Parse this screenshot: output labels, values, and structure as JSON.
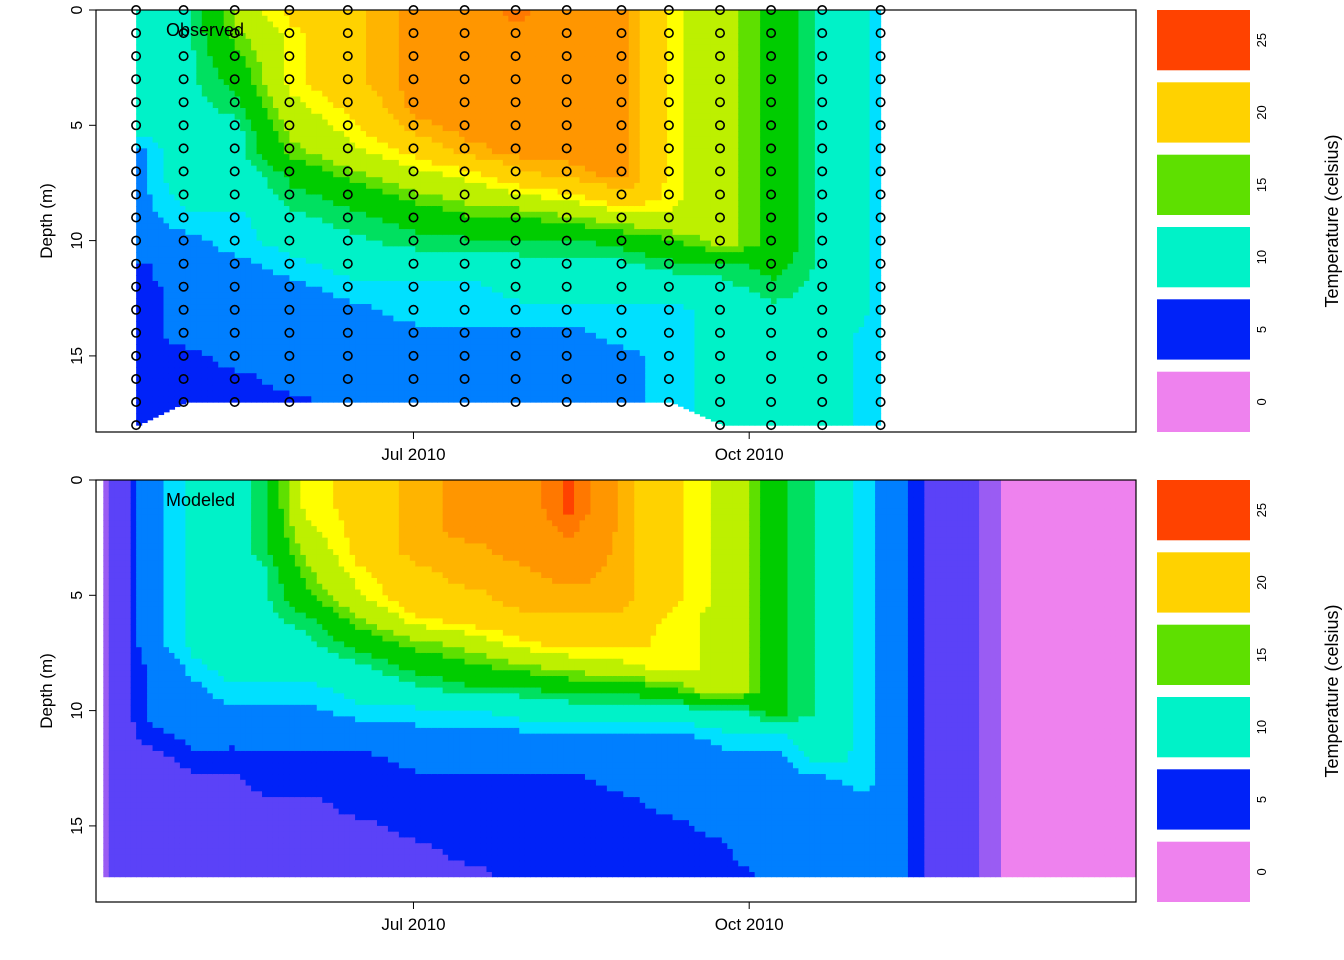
{
  "chart_data": [
    {
      "type": "heatmap",
      "title": "Observed",
      "ylabel": "Depth (m)",
      "xlabel": "",
      "x_range": [
        "2010-04-05",
        "2011-01-15"
      ],
      "ylim": [
        18.3,
        0
      ],
      "x_ticks": [
        {
          "date": "2010-07-01",
          "label": "Jul 2010"
        },
        {
          "date": "2010-10-01",
          "label": "Oct 2010"
        }
      ],
      "y_ticks": [
        0,
        5,
        10,
        15
      ],
      "grid": false,
      "sample_dates": [
        "2010-04-16",
        "2010-04-29",
        "2010-05-13",
        "2010-05-28",
        "2010-06-13",
        "2010-07-01",
        "2010-07-15",
        "2010-07-29",
        "2010-08-12",
        "2010-08-27",
        "2010-09-09",
        "2010-09-23",
        "2010-10-07",
        "2010-10-21",
        "2010-11-06"
      ],
      "sample_depths": [
        0,
        1,
        2,
        3,
        4,
        5,
        6,
        7,
        8,
        9,
        10,
        11,
        12,
        13,
        14,
        15,
        16,
        17,
        18
      ],
      "sample_max_depth": [
        18,
        17,
        17,
        17,
        17,
        17,
        17,
        17,
        17,
        17,
        17,
        18,
        18,
        18,
        18
      ],
      "profiles": [
        [
          10,
          10,
          10,
          10,
          10,
          10,
          8,
          8,
          8,
          8,
          8,
          6,
          6,
          6,
          6,
          6,
          6,
          6,
          6
        ],
        [
          11,
          11,
          11,
          11,
          11,
          11,
          11,
          11,
          10,
          9,
          8,
          8,
          7,
          7,
          7,
          6,
          6,
          6,
          6
        ],
        [
          16,
          15,
          14,
          13,
          12,
          11,
          11,
          10,
          10,
          9,
          9,
          8,
          8,
          7,
          7,
          7,
          6,
          6,
          6
        ],
        [
          19,
          18,
          18,
          18,
          17,
          16,
          15,
          13,
          12,
          11,
          10,
          9,
          8,
          8,
          7,
          7,
          7,
          6,
          6
        ],
        [
          20,
          20,
          20,
          20,
          19,
          18,
          17,
          15,
          13,
          12,
          11,
          10,
          9,
          8,
          8,
          7,
          7,
          7,
          6
        ],
        [
          22,
          22,
          22,
          22,
          22,
          21,
          19,
          17,
          15,
          13,
          12,
          10,
          9,
          9,
          8,
          8,
          7,
          7,
          6
        ],
        [
          22,
          22,
          22,
          22,
          22,
          22,
          21,
          18,
          16,
          14,
          12,
          10,
          9,
          9,
          8,
          8,
          8,
          7,
          7
        ],
        [
          24,
          23,
          22,
          22,
          22,
          22,
          22,
          20,
          17,
          14,
          12,
          11,
          10,
          9,
          8,
          8,
          8,
          7,
          7
        ],
        [
          22,
          22,
          22,
          22,
          22,
          22,
          22,
          21,
          18,
          15,
          12,
          11,
          10,
          9,
          8,
          8,
          8,
          8,
          7
        ],
        [
          22,
          22,
          22,
          22,
          22,
          22,
          22,
          22,
          20,
          16,
          13,
          11,
          10,
          9,
          9,
          8,
          8,
          8,
          8
        ],
        [
          18,
          18,
          18,
          18,
          18,
          18,
          18,
          18,
          18,
          17,
          14,
          12,
          10,
          9,
          9,
          9,
          9,
          9,
          9
        ],
        [
          16,
          16,
          16,
          16,
          16,
          16,
          16,
          16,
          16,
          16,
          16,
          12,
          11,
          10,
          10,
          10,
          10,
          10,
          10
        ],
        [
          14,
          14,
          14,
          14,
          14,
          14,
          14,
          14,
          14,
          14,
          14,
          13,
          12,
          11,
          11,
          10,
          10,
          10,
          10
        ],
        [
          11,
          11,
          11,
          11,
          11,
          11,
          11,
          11,
          11,
          11,
          11,
          11,
          11,
          11,
          10,
          10,
          10,
          10,
          10
        ],
        [
          9,
          9,
          9,
          9,
          9,
          9,
          9,
          9,
          9,
          9,
          9,
          9,
          9,
          9,
          9,
          9,
          9,
          9,
          9
        ]
      ]
    },
    {
      "type": "heatmap",
      "title": "Modeled",
      "ylabel": "Depth (m)",
      "xlabel": "",
      "x_range": [
        "2010-04-05",
        "2011-01-15"
      ],
      "ylim": [
        18.3,
        0
      ],
      "x_ticks": [
        {
          "date": "2010-07-01",
          "label": "Jul 2010"
        },
        {
          "date": "2010-10-01",
          "label": "Oct 2010"
        }
      ],
      "y_ticks": [
        0,
        5,
        10,
        15
      ],
      "grid": false,
      "model_dates": [
        "2010-04-07",
        "2010-04-12",
        "2010-04-20",
        "2010-05-01",
        "2010-05-10",
        "2010-05-20",
        "2010-06-01",
        "2010-06-15",
        "2010-07-01",
        "2010-07-15",
        "2010-07-29",
        "2010-08-12",
        "2010-08-27",
        "2010-09-09",
        "2010-09-23",
        "2010-09-28",
        "2010-10-07",
        "2010-10-21",
        "2010-11-01",
        "2010-11-10",
        "2010-11-20",
        "2010-11-28",
        "2010-12-05",
        "2010-12-15",
        "2011-01-01",
        "2011-01-15"
      ],
      "model_depths": [
        0,
        1,
        2,
        3,
        4,
        5,
        6,
        7,
        8,
        9,
        10,
        11,
        12,
        13,
        14,
        15,
        16,
        17
      ],
      "model_max_depth": 17.2,
      "profiles": [
        [
          3,
          3,
          3,
          3,
          3,
          3,
          3,
          3,
          3,
          3,
          3,
          3,
          3,
          3,
          3,
          3,
          3,
          3
        ],
        [
          5,
          5,
          5,
          5,
          5,
          5,
          5,
          5,
          5,
          5,
          5,
          5,
          5,
          5,
          5,
          5,
          5,
          5
        ],
        [
          8,
          8,
          8,
          8,
          8,
          8,
          8,
          8,
          7,
          7,
          7,
          6,
          5,
          5,
          5,
          5,
          5,
          5
        ],
        [
          10,
          10,
          10,
          10,
          10,
          10,
          10,
          10,
          9,
          8,
          8,
          7,
          6,
          5,
          5,
          5,
          5,
          5
        ],
        [
          10,
          10,
          10,
          10,
          10,
          10,
          10,
          10,
          10,
          9,
          8,
          7,
          6,
          5,
          5,
          5,
          5,
          5
        ],
        [
          12,
          12,
          12,
          12,
          11,
          11,
          11,
          10,
          10,
          9,
          8,
          7,
          6,
          6,
          5,
          5,
          5,
          5
        ],
        [
          18,
          18,
          17,
          16,
          15,
          14,
          12,
          11,
          10,
          9,
          8,
          7,
          6,
          6,
          5,
          5,
          5,
          5
        ],
        [
          19,
          19,
          19,
          19,
          18,
          17,
          15,
          13,
          11,
          10,
          9,
          7,
          6,
          6,
          6,
          5,
          5,
          5
        ],
        [
          21,
          21,
          21,
          21,
          20,
          20,
          18,
          15,
          13,
          11,
          9,
          8,
          7,
          6,
          6,
          6,
          5,
          5
        ],
        [
          22,
          22,
          22,
          21,
          21,
          20,
          19,
          16,
          14,
          12,
          9,
          8,
          7,
          6,
          6,
          6,
          6,
          5
        ],
        [
          22,
          22,
          22,
          22,
          21,
          21,
          20,
          18,
          15,
          12,
          10,
          8,
          7,
          6,
          6,
          6,
          6,
          6
        ],
        [
          25,
          25,
          24,
          23,
          22,
          21,
          20,
          19,
          16,
          13,
          10,
          8,
          7,
          6,
          6,
          6,
          6,
          6
        ],
        [
          21,
          21,
          21,
          21,
          21,
          21,
          20,
          19,
          17,
          13,
          10,
          8,
          7,
          7,
          6,
          6,
          6,
          6
        ],
        [
          19,
          19,
          19,
          19,
          19,
          19,
          18,
          18,
          18,
          14,
          10,
          8,
          7,
          7,
          7,
          6,
          6,
          6
        ],
        [
          17,
          17,
          17,
          17,
          17,
          17,
          17,
          17,
          17,
          17,
          11,
          9,
          8,
          7,
          7,
          7,
          6,
          6
        ],
        [
          16,
          16,
          16,
          16,
          16,
          16,
          16,
          16,
          16,
          16,
          11,
          9,
          8,
          7,
          7,
          7,
          7,
          6
        ],
        [
          13,
          13,
          13,
          13,
          13,
          13,
          13,
          13,
          13,
          13,
          13,
          9,
          8,
          8,
          7,
          7,
          7,
          7
        ],
        [
          11,
          11,
          11,
          11,
          11,
          11,
          11,
          11,
          11,
          11,
          11,
          11,
          10,
          8,
          8,
          8,
          7,
          7
        ],
        [
          9,
          9,
          9,
          9,
          9,
          9,
          9,
          9,
          9,
          9,
          9,
          9,
          9,
          9,
          8,
          8,
          8,
          8
        ],
        [
          7,
          7,
          7,
          7,
          7,
          7,
          7,
          7,
          7,
          7,
          7,
          7,
          7,
          7,
          7,
          7,
          7,
          7
        ],
        [
          5,
          5,
          5,
          5,
          5,
          5,
          5,
          5,
          5,
          5,
          5,
          5,
          5,
          5,
          5,
          5,
          5,
          5
        ],
        [
          4,
          4,
          4,
          4,
          4,
          4,
          4,
          4,
          4,
          4,
          4,
          4,
          4,
          4,
          4,
          4,
          4,
          4
        ],
        [
          3,
          3,
          3,
          3,
          3,
          3,
          3,
          3,
          3,
          3,
          3,
          3,
          3,
          3,
          3,
          3,
          3,
          3
        ],
        [
          1,
          1,
          1,
          1,
          1,
          1,
          1,
          1,
          1,
          1,
          1,
          1,
          1,
          1,
          1,
          1,
          1,
          1
        ],
        [
          1,
          1,
          1,
          1,
          1,
          1,
          1,
          1,
          1,
          1,
          1,
          1,
          1,
          1,
          1,
          1,
          1,
          1
        ],
        [
          1,
          1,
          1,
          1,
          1,
          1,
          1,
          1,
          1,
          1,
          1,
          1,
          1,
          1,
          1,
          1,
          1,
          1
        ]
      ]
    }
  ],
  "color_scale": {
    "label": "Temperature (celsius)",
    "tick_labels": [
      "0",
      "5",
      "10",
      "15",
      "20",
      "25"
    ],
    "breaks": [
      -2.5,
      2.5,
      3.5,
      5.5,
      6.5,
      8.5,
      9.5,
      11.5,
      12.5,
      14.5,
      15.5,
      17.5,
      18.5,
      20.5,
      21.5,
      23.5,
      24.5,
      27.5
    ],
    "band_colors": [
      "#EE82EE",
      "#9A5CF3",
      "#5B42F8",
      "#0022F8",
      "#007FFF",
      "#00E0FF",
      "#00F2C8",
      "#00E060",
      "#00CC00",
      "#5EE000",
      "#BDF000",
      "#FFFF00",
      "#FFD200",
      "#FFB400",
      "#FF9600",
      "#FF7800",
      "#FF4200"
    ],
    "legend_swatches": [
      "#EE82EE",
      "#0022F8",
      "#00F2C8",
      "#5EE000",
      "#FFD200",
      "#FF4200"
    ]
  }
}
